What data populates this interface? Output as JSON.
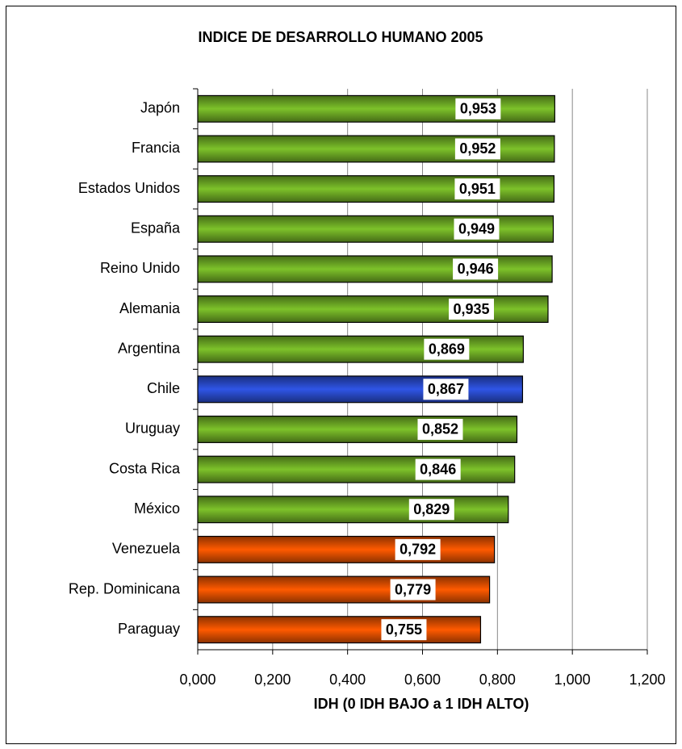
{
  "chart_data": {
    "type": "bar",
    "orientation": "horizontal",
    "title": "INDICE DE DESARROLLO HUMANO 2005",
    "x_label": "IDH (0  IDH BAJO a 1 IDH ALTO)",
    "categories": [
      "Japón",
      "Francia",
      "Estados Unidos",
      "España",
      "Reino Unido",
      "Alemania",
      "Argentina",
      "Chile",
      "Uruguay",
      "Costa Rica",
      "México",
      "Venezuela",
      "Rep. Dominicana",
      "Paraguay"
    ],
    "values": [
      0.953,
      0.952,
      0.951,
      0.949,
      0.946,
      0.935,
      0.869,
      0.867,
      0.852,
      0.846,
      0.829,
      0.792,
      0.779,
      0.755
    ],
    "value_labels": [
      "0,953",
      "0,952",
      "0,951",
      "0,949",
      "0,946",
      "0,935",
      "0,869",
      "0,867",
      "0,852",
      "0,846",
      "0,829",
      "0,792",
      "0,779",
      "0,755"
    ],
    "colors": [
      "#7dc22a",
      "#7dc22a",
      "#7dc22a",
      "#7dc22a",
      "#7dc22a",
      "#7dc22a",
      "#7dc22a",
      "#2f55e6",
      "#7dc22a",
      "#7dc22a",
      "#7dc22a",
      "#ff5a00",
      "#ff5a00",
      "#ff5a00"
    ],
    "xlim": [
      0,
      1.2
    ],
    "xticks": [
      {
        "value": 0,
        "label": "0,000"
      },
      {
        "value": 0.2,
        "label": "0,200"
      },
      {
        "value": 0.4,
        "label": "0,400"
      },
      {
        "value": 0.6,
        "label": "0,600"
      },
      {
        "value": 0.8,
        "label": "0,800"
      },
      {
        "value": 1.0,
        "label": "1,000"
      },
      {
        "value": 1.2,
        "label": "1,200"
      }
    ],
    "grid": true
  }
}
